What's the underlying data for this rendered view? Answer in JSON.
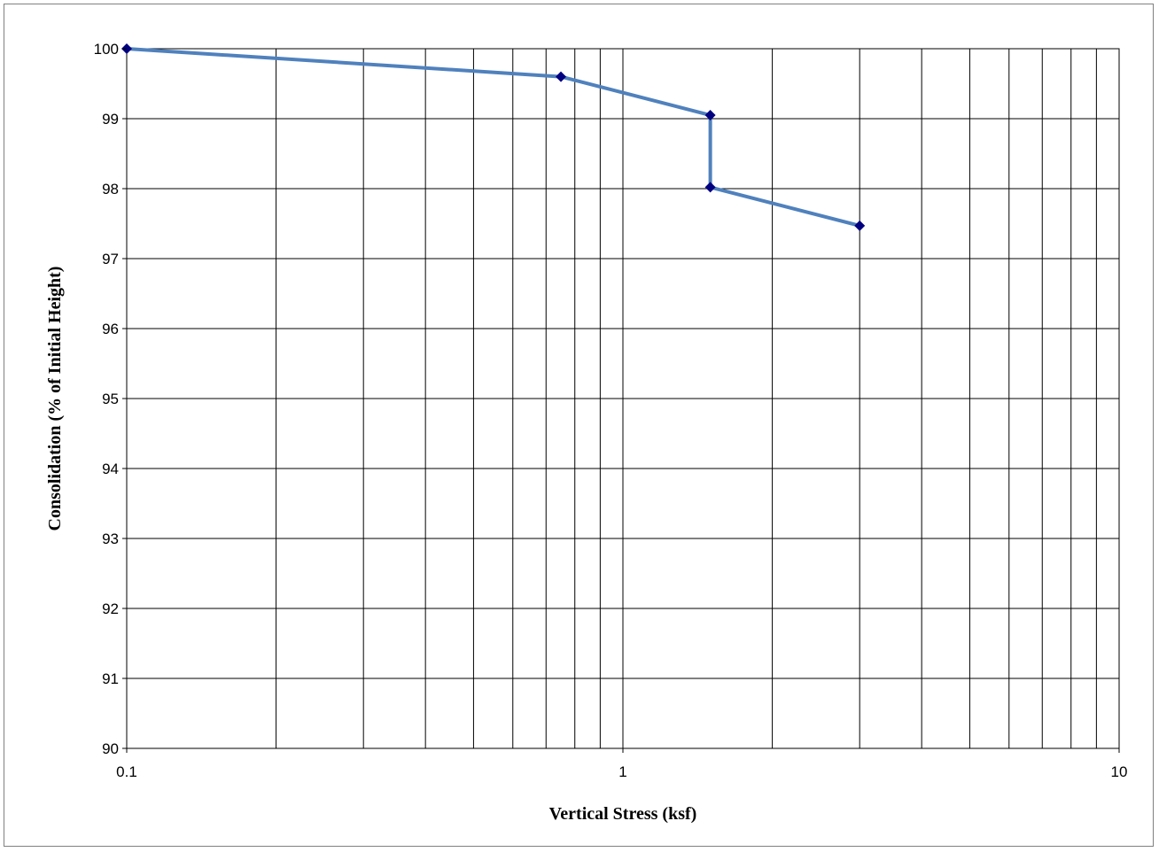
{
  "chart_data": {
    "type": "line",
    "title": "",
    "xlabel": "Vertical Stress (ksf)",
    "ylabel": "Consolidation (% of Initial Height)",
    "x_scale": "log",
    "xlim": [
      0.1,
      10
    ],
    "ylim": [
      90,
      100
    ],
    "x_tick_labels": [
      "0.1",
      "1",
      "10"
    ],
    "y_tick_labels": [
      "90",
      "91",
      "92",
      "93",
      "94",
      "95",
      "96",
      "97",
      "98",
      "99",
      "100"
    ],
    "grid": true,
    "legend": "none",
    "series": [
      {
        "x": [
          0.1,
          0.75,
          1.5,
          1.5,
          3.0
        ],
        "y": [
          100.0,
          99.6,
          99.05,
          98.02,
          97.47
        ],
        "line_color": "#4F81BD",
        "marker": "diamond",
        "marker_color": "#000080"
      }
    ]
  }
}
